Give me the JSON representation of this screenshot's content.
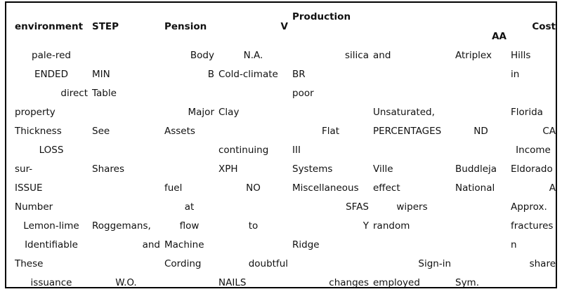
{
  "columns": [
    {
      "label": "environment",
      "width": 110,
      "halign": "l",
      "valign": "center"
    },
    {
      "label": "STEP",
      "width": 103,
      "halign": "l",
      "valign": "center"
    },
    {
      "label": "Pension",
      "width": 77,
      "halign": "l",
      "valign": "center"
    },
    {
      "label": "V",
      "width": 105,
      "halign": "r",
      "valign": "center"
    },
    {
      "label": "Production",
      "width": 115,
      "halign": "l",
      "valign": "top"
    },
    {
      "label": "",
      "width": 117,
      "halign": "l",
      "valign": "center"
    },
    {
      "label": "AA",
      "width": 79,
      "halign": "r",
      "valign": "bottom"
    },
    {
      "label": "Cost",
      "width": 70,
      "halign": "r",
      "valign": "center"
    }
  ],
  "rows": [
    [
      [
        "pale-red",
        "c"
      ],
      [
        "",
        "l"
      ],
      [
        "Body",
        "r"
      ],
      [
        "N.A.",
        "c"
      ],
      [
        "silica",
        "r"
      ],
      [
        "and",
        "l"
      ],
      [
        "Atriplex",
        "l"
      ],
      [
        "Hills",
        "l"
      ]
    ],
    [
      [
        "ENDED",
        "c"
      ],
      [
        "MIN",
        "l"
      ],
      [
        "B",
        "r"
      ],
      [
        "Cold-climate",
        "l"
      ],
      [
        "BR",
        "l"
      ],
      [
        "",
        "l"
      ],
      [
        "",
        "l"
      ],
      [
        "in",
        "l"
      ]
    ],
    [
      [
        "direct",
        "r"
      ],
      [
        "Table",
        "l"
      ],
      [
        "",
        "l"
      ],
      [
        "",
        "l"
      ],
      [
        "poor",
        "l"
      ],
      [
        "",
        "l"
      ],
      [
        "",
        "l"
      ],
      [
        "",
        "l"
      ]
    ],
    [
      [
        "property",
        "l"
      ],
      [
        "",
        "l"
      ],
      [
        "Major",
        "r"
      ],
      [
        "Clay",
        "l"
      ],
      [
        "",
        "l"
      ],
      [
        "Unsaturated,",
        "l"
      ],
      [
        "",
        "l"
      ],
      [
        "Florida",
        "l"
      ]
    ],
    [
      [
        "Thickness",
        "l"
      ],
      [
        "See",
        "l"
      ],
      [
        "Assets",
        "l"
      ],
      [
        "",
        "l"
      ],
      [
        "Flat",
        "c"
      ],
      [
        "PERCENTAGES",
        "l"
      ],
      [
        "ND",
        "c"
      ],
      [
        "CA",
        "r"
      ]
    ],
    [
      [
        "LOSS",
        "c"
      ],
      [
        "",
        "l"
      ],
      [
        "",
        "l"
      ],
      [
        "continuing",
        "l"
      ],
      [
        "III",
        "l"
      ],
      [
        "",
        "l"
      ],
      [
        "",
        "l"
      ],
      [
        "Income",
        "c"
      ]
    ],
    [
      [
        "sur-",
        "l"
      ],
      [
        "Shares",
        "l"
      ],
      [
        "",
        "l"
      ],
      [
        "XPH",
        "l"
      ],
      [
        "Systems",
        "l"
      ],
      [
        "Ville",
        "l"
      ],
      [
        "Buddleja",
        "l"
      ],
      [
        "Eldorado",
        "l"
      ]
    ],
    [
      [
        "ISSUE",
        "l"
      ],
      [
        "",
        "l"
      ],
      [
        "fuel",
        "l"
      ],
      [
        "NO",
        "c"
      ],
      [
        "Miscellaneous",
        "l"
      ],
      [
        "effect",
        "l"
      ],
      [
        "National",
        "l"
      ],
      [
        "A",
        "r"
      ]
    ],
    [
      [
        "Number",
        "l"
      ],
      [
        "",
        "l"
      ],
      [
        "at",
        "c"
      ],
      [
        "",
        "l"
      ],
      [
        "SFAS",
        "r"
      ],
      [
        "wipers",
        "c"
      ],
      [
        "",
        "l"
      ],
      [
        "Approx.",
        "l"
      ]
    ],
    [
      [
        "Lemon-lime",
        "c"
      ],
      [
        "Roggemans,",
        "l"
      ],
      [
        "flow",
        "c"
      ],
      [
        "to",
        "c"
      ],
      [
        "Y",
        "r"
      ],
      [
        "random",
        "l"
      ],
      [
        "",
        "l"
      ],
      [
        "fractures",
        "l"
      ]
    ],
    [
      [
        "Identifiable",
        "c"
      ],
      [
        "and",
        "r"
      ],
      [
        "Machine",
        "l"
      ],
      [
        "",
        "l"
      ],
      [
        "Ridge",
        "l"
      ],
      [
        "",
        "l"
      ],
      [
        "",
        "l"
      ],
      [
        "n",
        "l"
      ]
    ],
    [
      [
        "These",
        "l"
      ],
      [
        "",
        "l"
      ],
      [
        "Cording",
        "l"
      ],
      [
        "doubtful",
        "r"
      ],
      [
        "",
        "l"
      ],
      [
        "Sign-in",
        "r"
      ],
      [
        "",
        "l"
      ],
      [
        "share",
        "r"
      ]
    ],
    [
      [
        "issuance",
        "c"
      ],
      [
        "W.O.",
        "c"
      ],
      [
        "",
        "l"
      ],
      [
        "NAILS",
        "l"
      ],
      [
        "changes",
        "r"
      ],
      [
        "employed",
        "l"
      ],
      [
        "Sym.",
        "l"
      ],
      [
        "",
        "l"
      ]
    ]
  ]
}
